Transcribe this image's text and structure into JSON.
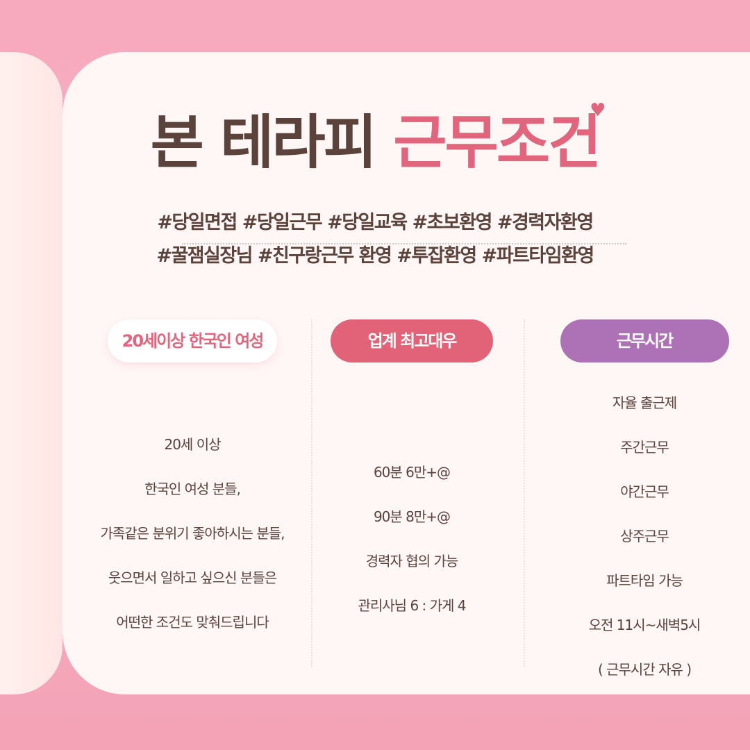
{
  "title": {
    "main": "본 테라피",
    "accent": "근무조건",
    "heart_icon": "heart"
  },
  "hashtags": [
    "#당일면접 #당일근무 #당일교육 #초보환영 #경력자환영",
    "#꿀잼실장님 #친구랑근무 환영 #투잡환영 #파트타임환영"
  ],
  "columns": [
    {
      "label": "20세이상 한국인 여성",
      "lines": [
        "20세 이상",
        "한국인 여성 분들,",
        "가족같은 분위기 좋아하시는 분들,",
        "웃으면서 일하고 싶으신 분들은",
        "어떤한 조건도 맞춰드립니다"
      ]
    },
    {
      "label": "업계 최고대우",
      "lines": [
        "60분 6만+@",
        "90분 8만+@",
        "경력자 협의 가능",
        "관리사님 6 : 가게 4"
      ]
    },
    {
      "label": "근무시간",
      "lines": [
        "자율 출근제",
        "주간근무",
        "야간근무",
        "상주근무",
        "파트타임 가능",
        "오전 11시~새벽5시",
        "( 근무시간 자유 )"
      ]
    }
  ],
  "colors": {
    "accent": "#e0657d",
    "purple": "#ad72b6",
    "text": "#5b433b"
  }
}
